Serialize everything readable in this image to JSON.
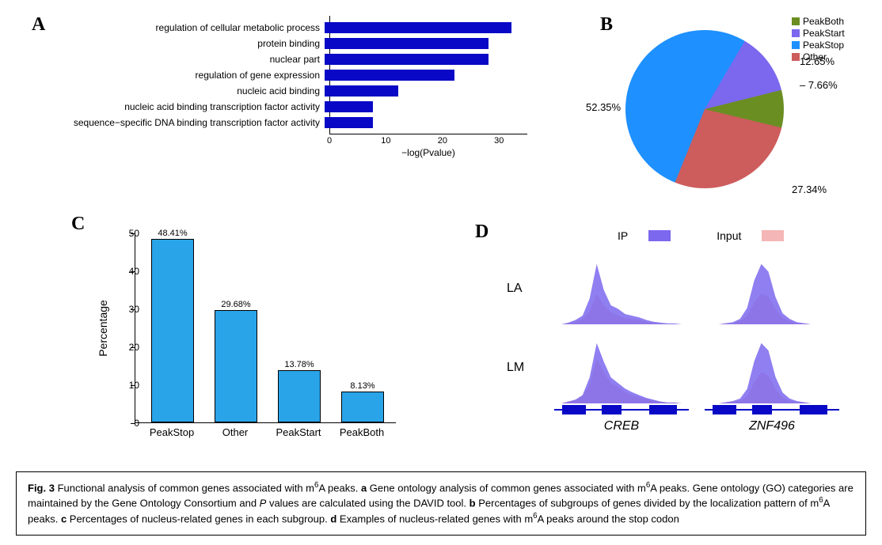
{
  "colors": {
    "bar_blue": "#0808c6",
    "lightblue": "#2aa4e8",
    "pie_green": "#6b8e23",
    "pie_purple": "#7b68ee",
    "pie_blue": "#1e90ff",
    "pie_red": "#cd5c5c",
    "track_ip": "#7b68ee",
    "track_input": "#f4b6b6",
    "gene_blue": "#0808c6",
    "text": "#000000"
  },
  "panelA": {
    "label": "A",
    "type": "horizontal_bar",
    "xlabel": "−log(Pvalue)",
    "xlim": [
      0,
      35
    ],
    "xticks": [
      0,
      10,
      20,
      30
    ],
    "bar_color": "#0808c6",
    "label_fontsize": 12,
    "items": [
      {
        "label": "regulation of cellular metabolic process",
        "value": 33
      },
      {
        "label": "protein binding",
        "value": 29
      },
      {
        "label": "nuclear part",
        "value": 29
      },
      {
        "label": "regulation of gene expression",
        "value": 23
      },
      {
        "label": "nucleic acid binding",
        "value": 13
      },
      {
        "label": "nucleic acid binding transcription factor activity",
        "value": 8.5
      },
      {
        "label": "sequence−specific DNA binding transcription factor activity",
        "value": 8.5
      }
    ]
  },
  "panelB": {
    "label": "B",
    "type": "pie",
    "slices": [
      {
        "name": "PeakBoth",
        "pct": 7.66,
        "color": "#6b8e23",
        "label": "7.66%"
      },
      {
        "name": "PeakStart",
        "pct": 12.65,
        "color": "#7b68ee",
        "label": "12.65%"
      },
      {
        "name": "PeakStop",
        "pct": 52.35,
        "color": "#1e90ff",
        "label": "52.35%"
      },
      {
        "name": "Other",
        "pct": 27.34,
        "color": "#cd5c5c",
        "label": "27.34%"
      }
    ],
    "legend": [
      "PeakBoth",
      "PeakStart",
      "PeakStop",
      "Other"
    ]
  },
  "panelC": {
    "label": "C",
    "type": "bar",
    "ylabel": "Percentage",
    "ylim": [
      0,
      50
    ],
    "yticks": [
      0,
      10,
      20,
      30,
      40,
      50
    ],
    "bar_color": "#2aa4e8",
    "bar_border": "#000000",
    "bars": [
      {
        "cat": "PeakStop",
        "value": 48.41,
        "label": "48.41%"
      },
      {
        "cat": "Other",
        "value": 29.68,
        "label": "29.68%"
      },
      {
        "cat": "PeakStart",
        "value": 13.78,
        "label": "13.78%"
      },
      {
        "cat": "PeakBoth",
        "value": 8.13,
        "label": "8.13%"
      }
    ]
  },
  "panelD": {
    "label": "D",
    "legend": {
      "ip": "IP",
      "input": "Input",
      "ip_color": "#7b68ee",
      "input_color": "#f4b6b6"
    },
    "rows": [
      "LA",
      "LM"
    ],
    "genes": [
      "CREB",
      "ZNF496"
    ],
    "gene_color": "#0808c6",
    "tracks": {
      "LA_CREB": {
        "ip": [
          0,
          0,
          2,
          5,
          10,
          30,
          70,
          40,
          22,
          18,
          12,
          10,
          8,
          5,
          3,
          2,
          1,
          1,
          0,
          0
        ],
        "input": [
          0,
          0,
          1,
          3,
          6,
          15,
          35,
          22,
          14,
          10,
          7,
          6,
          5,
          3,
          2,
          1,
          1,
          0,
          0,
          0
        ]
      },
      "LA_ZNF496": {
        "ip": [
          0,
          0,
          0,
          1,
          2,
          5,
          15,
          40,
          55,
          48,
          25,
          10,
          5,
          2,
          1,
          0,
          0,
          0,
          0,
          0
        ],
        "input": [
          0,
          0,
          0,
          1,
          1,
          3,
          8,
          20,
          28,
          25,
          14,
          6,
          3,
          1,
          1,
          0,
          0,
          0,
          0,
          0
        ]
      },
      "LM_CREB": {
        "ip": [
          0,
          0,
          2,
          4,
          9,
          28,
          65,
          45,
          28,
          22,
          16,
          12,
          9,
          6,
          4,
          2,
          1,
          1,
          0,
          0
        ],
        "input": [
          0,
          0,
          2,
          4,
          8,
          20,
          48,
          34,
          22,
          18,
          12,
          9,
          7,
          5,
          3,
          2,
          1,
          1,
          0,
          0
        ]
      },
      "LM_ZNF496": {
        "ip": [
          0,
          0,
          0,
          1,
          2,
          4,
          12,
          35,
          50,
          44,
          22,
          9,
          4,
          2,
          1,
          0,
          0,
          0,
          0,
          0
        ],
        "input": [
          0,
          0,
          0,
          1,
          1,
          2,
          6,
          18,
          26,
          23,
          12,
          5,
          2,
          1,
          1,
          0,
          0,
          0,
          0,
          0
        ]
      }
    }
  },
  "caption": {
    "fignum": "Fig. 3",
    "title": "Functional analysis of common genes associated with m",
    "sup": "6",
    "title2": "A peaks.",
    "a": "Gene ontology analysis of common genes associated with m",
    "a2": "A peaks. Gene ontology (GO) categories are maintained by the Gene Ontology Consortium and ",
    "pval": "P",
    "a3": " values are calculated using the DAVID tool.",
    "b": "Percentages of subgroups of genes divided by the localization pattern of m",
    "b2": "A peaks.",
    "c": "Percentages of nucleus-related genes in each subgroup.",
    "d": "Examples of nucleus-related genes with m",
    "d2": "A peaks around the stop codon"
  }
}
